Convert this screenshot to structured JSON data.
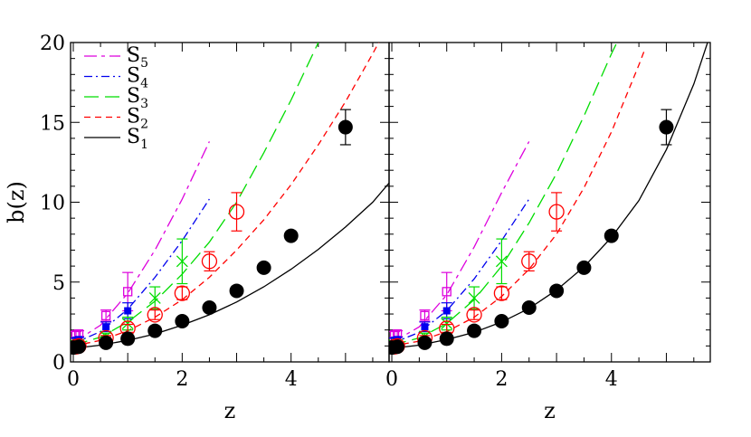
{
  "chart_data": [
    {
      "type": "line",
      "panel": "left",
      "title": "",
      "xlabel": "z",
      "ylabel": "b(z)",
      "xlim": [
        -0.05,
        5.8
      ],
      "ylim": [
        0,
        20
      ],
      "xticks": [
        0,
        2,
        4
      ],
      "yticks": [
        0,
        5,
        10,
        15,
        20
      ],
      "legend": {
        "placement": "top-left",
        "entries": [
          {
            "base": "S",
            "sub": "5",
            "series": "S5"
          },
          {
            "base": "S",
            "sub": "4",
            "series": "S4"
          },
          {
            "base": "S",
            "sub": "3",
            "series": "S3"
          },
          {
            "base": "S",
            "sub": "2",
            "series": "S2"
          },
          {
            "base": "S",
            "sub": "1",
            "series": "S1"
          }
        ]
      },
      "series": [
        {
          "name": "S5",
          "color": "#dd00dd",
          "dash": "long-short",
          "marker": "open-square",
          "curve": {
            "x": [
              0,
              0.5,
              1,
              1.5,
              2,
              2.5
            ],
            "y": [
              1.2,
              2.3,
              4.3,
              7.0,
              10.2,
              13.8
            ]
          },
          "points": [
            {
              "x": 0.05,
              "y": 1.7,
              "err": 0.2
            },
            {
              "x": 0.1,
              "y": 1.75,
              "err": 0.2
            },
            {
              "x": 0.6,
              "y": 2.9,
              "err": 0.35
            },
            {
              "x": 1.0,
              "y": 4.4,
              "err": 1.2
            }
          ]
        },
        {
          "name": "S4",
          "color": "#0000ee",
          "dash": "dot-dash",
          "marker": "filled-square",
          "curve": {
            "x": [
              0,
              0.5,
              1,
              1.5,
              2,
              2.5
            ],
            "y": [
              1.15,
              1.9,
              3.3,
              5.3,
              7.6,
              10.2
            ]
          },
          "points": [
            {
              "x": 0.05,
              "y": 1.35,
              "err": 0.15
            },
            {
              "x": 0.1,
              "y": 1.4,
              "err": 0.15
            },
            {
              "x": 0.6,
              "y": 2.2,
              "err": 0.3
            },
            {
              "x": 1.0,
              "y": 3.2,
              "err": 0.5
            }
          ]
        },
        {
          "name": "S3",
          "color": "#00dd00",
          "dash": "long-dash",
          "marker": "cross",
          "curve": {
            "x": [
              0,
              0.5,
              1,
              1.5,
              2,
              2.5,
              3,
              3.5,
              4,
              4.5
            ],
            "y": [
              1.05,
              1.55,
              2.5,
              3.8,
              5.5,
              7.5,
              10.0,
              13.1,
              16.4,
              20.0
            ]
          },
          "points": [
            {
              "x": 0.05,
              "y": 1.05,
              "err": 0.15
            },
            {
              "x": 0.1,
              "y": 1.1,
              "err": 0.15
            },
            {
              "x": 0.6,
              "y": 1.6,
              "err": 0.2
            },
            {
              "x": 1.0,
              "y": 2.4,
              "err": 0.4
            },
            {
              "x": 1.5,
              "y": 4.0,
              "err": 0.7
            },
            {
              "x": 2.0,
              "y": 6.3,
              "err": 1.4
            }
          ]
        },
        {
          "name": "S2",
          "color": "#ff0000",
          "dash": "short-dash",
          "marker": "open-circle",
          "curve": {
            "x": [
              0,
              0.5,
              1,
              1.5,
              2,
              2.5,
              3,
              3.5,
              4,
              4.5,
              5,
              5.5,
              5.8
            ],
            "y": [
              1.0,
              1.35,
              1.95,
              2.8,
              3.9,
              5.3,
              7.0,
              8.9,
              11.1,
              13.6,
              16.3,
              19.3,
              21.2
            ]
          },
          "points": [
            {
              "x": 0.05,
              "y": 0.95,
              "err": 0.1
            },
            {
              "x": 0.1,
              "y": 1.0,
              "err": 0.1
            },
            {
              "x": 0.6,
              "y": 1.5,
              "err": 0.15
            },
            {
              "x": 1.0,
              "y": 2.1,
              "err": 0.25
            },
            {
              "x": 1.5,
              "y": 2.95,
              "err": 0.3
            },
            {
              "x": 2.0,
              "y": 4.3,
              "err": 0.4
            },
            {
              "x": 2.5,
              "y": 6.3,
              "err": 0.6
            },
            {
              "x": 3.0,
              "y": 9.4,
              "err": 1.2
            }
          ]
        },
        {
          "name": "S1",
          "color": "#000000",
          "dash": "solid",
          "marker": "filled-circle",
          "curve": {
            "x": [
              0,
              0.5,
              1,
              1.5,
              2,
              2.5,
              3,
              3.5,
              4,
              4.5,
              5,
              5.5,
              5.8
            ],
            "y": [
              0.85,
              1.05,
              1.35,
              1.75,
              2.3,
              2.95,
              3.75,
              4.7,
              5.8,
              7.05,
              8.45,
              10.0,
              11.2
            ]
          },
          "points": [
            {
              "x": 0.0,
              "y": 0.9
            },
            {
              "x": 0.1,
              "y": 0.95
            },
            {
              "x": 0.6,
              "y": 1.2
            },
            {
              "x": 1.0,
              "y": 1.45
            },
            {
              "x": 1.5,
              "y": 1.95
            },
            {
              "x": 2.0,
              "y": 2.55
            },
            {
              "x": 2.5,
              "y": 3.4
            },
            {
              "x": 3.0,
              "y": 4.45
            },
            {
              "x": 3.5,
              "y": 5.9
            },
            {
              "x": 4.0,
              "y": 7.9
            },
            {
              "x": 5.0,
              "y": 14.7,
              "err": 1.1
            }
          ]
        }
      ]
    },
    {
      "type": "line",
      "panel": "right",
      "title": "",
      "xlabel": "z",
      "ylabel": "",
      "xlim": [
        -0.05,
        5.8
      ],
      "ylim": [
        0,
        20
      ],
      "xticks": [
        0,
        2,
        4
      ],
      "yticks": [
        0,
        5,
        10,
        15,
        20
      ],
      "series": [
        {
          "name": "S5",
          "color": "#dd00dd",
          "dash": "long-short",
          "marker": "open-square",
          "curve": {
            "x": [
              0,
              0.5,
              1,
              1.5,
              2,
              2.5
            ],
            "y": [
              1.2,
              2.2,
              4.2,
              7.2,
              10.6,
              13.8
            ]
          },
          "points": [
            {
              "x": 0.05,
              "y": 1.7,
              "err": 0.2
            },
            {
              "x": 0.1,
              "y": 1.75,
              "err": 0.2
            },
            {
              "x": 0.6,
              "y": 2.9,
              "err": 0.35
            },
            {
              "x": 1.0,
              "y": 4.4,
              "err": 1.2
            }
          ]
        },
        {
          "name": "S4",
          "color": "#0000ee",
          "dash": "dot-dash",
          "marker": "filled-square",
          "curve": {
            "x": [
              0,
              0.5,
              1,
              1.5,
              2,
              2.5
            ],
            "y": [
              1.15,
              1.85,
              3.2,
              5.2,
              7.6,
              10.2
            ]
          },
          "points": [
            {
              "x": 0.05,
              "y": 1.35,
              "err": 0.15
            },
            {
              "x": 0.1,
              "y": 1.4,
              "err": 0.15
            },
            {
              "x": 0.6,
              "y": 2.2,
              "err": 0.3
            },
            {
              "x": 1.0,
              "y": 3.2,
              "err": 0.5
            }
          ]
        },
        {
          "name": "S3",
          "color": "#00dd00",
          "dash": "long-dash",
          "marker": "cross",
          "curve": {
            "x": [
              0,
              0.5,
              1,
              1.5,
              2,
              2.5,
              3,
              3.5,
              4,
              4.1
            ],
            "y": [
              1.05,
              1.5,
              2.4,
              3.9,
              6.0,
              8.7,
              11.8,
              15.4,
              19.3,
              20.0
            ]
          },
          "points": [
            {
              "x": 0.05,
              "y": 1.05,
              "err": 0.15
            },
            {
              "x": 0.1,
              "y": 1.1,
              "err": 0.15
            },
            {
              "x": 0.6,
              "y": 1.6,
              "err": 0.2
            },
            {
              "x": 1.0,
              "y": 2.4,
              "err": 0.4
            },
            {
              "x": 1.5,
              "y": 4.0,
              "err": 0.7
            },
            {
              "x": 2.0,
              "y": 6.3,
              "err": 1.4
            }
          ]
        },
        {
          "name": "S2",
          "color": "#ff0000",
          "dash": "short-dash",
          "marker": "open-circle",
          "curve": {
            "x": [
              0,
              0.5,
              1,
              1.5,
              2,
              2.5,
              3,
              3.5,
              4,
              4.5,
              4.6
            ],
            "y": [
              1.0,
              1.3,
              1.9,
              2.8,
              4.1,
              5.8,
              8.0,
              10.9,
              14.4,
              18.6,
              19.5
            ]
          },
          "points": [
            {
              "x": 0.05,
              "y": 0.95,
              "err": 0.1
            },
            {
              "x": 0.1,
              "y": 1.0,
              "err": 0.1
            },
            {
              "x": 0.6,
              "y": 1.5,
              "err": 0.15
            },
            {
              "x": 1.0,
              "y": 2.1,
              "err": 0.25
            },
            {
              "x": 1.5,
              "y": 2.95,
              "err": 0.3
            },
            {
              "x": 2.0,
              "y": 4.3,
              "err": 0.4
            },
            {
              "x": 2.5,
              "y": 6.3,
              "err": 0.6
            },
            {
              "x": 3.0,
              "y": 9.4,
              "err": 1.2
            }
          ]
        },
        {
          "name": "S1",
          "color": "#000000",
          "dash": "solid",
          "marker": "filled-circle",
          "curve": {
            "x": [
              0,
              0.5,
              1,
              1.5,
              2,
              2.5,
              3,
              3.5,
              4,
              4.5,
              5,
              5.5,
              5.75
            ],
            "y": [
              0.85,
              1.05,
              1.4,
              1.85,
              2.5,
              3.35,
              4.5,
              5.95,
              7.8,
              10.1,
              13.3,
              17.4,
              20.0
            ]
          },
          "points": [
            {
              "x": 0.0,
              "y": 0.9
            },
            {
              "x": 0.1,
              "y": 0.95
            },
            {
              "x": 0.6,
              "y": 1.2
            },
            {
              "x": 1.0,
              "y": 1.45
            },
            {
              "x": 1.5,
              "y": 1.95
            },
            {
              "x": 2.0,
              "y": 2.55
            },
            {
              "x": 2.5,
              "y": 3.4
            },
            {
              "x": 3.0,
              "y": 4.45
            },
            {
              "x": 3.5,
              "y": 5.9
            },
            {
              "x": 4.0,
              "y": 7.9
            },
            {
              "x": 5.0,
              "y": 14.7,
              "err": 1.1
            }
          ]
        }
      ]
    }
  ]
}
